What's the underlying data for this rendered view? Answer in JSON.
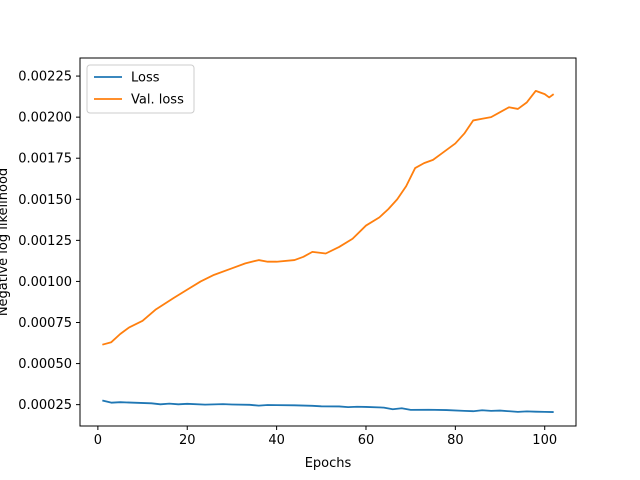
{
  "chart_data": {
    "type": "line",
    "xlabel": "Epochs",
    "ylabel": "Negative log likelihood",
    "xlim": [
      -4,
      107
    ],
    "ylim": [
      0.00012,
      0.00236
    ],
    "xticks": [
      0,
      20,
      40,
      60,
      80,
      100
    ],
    "yticks": [
      0.00025,
      0.0005,
      0.00075,
      0.001,
      0.00125,
      0.0015,
      0.00175,
      0.002,
      0.00225
    ],
    "ytick_labels": [
      "0.00025",
      "0.00050",
      "0.00075",
      "0.00100",
      "0.00125",
      "0.00150",
      "0.00175",
      "0.00200",
      "0.00225"
    ],
    "xtick_labels": [
      "0",
      "20",
      "40",
      "60",
      "80",
      "100"
    ],
    "grid": false,
    "legend": "top-left",
    "series": [
      {
        "name": "Loss",
        "color": "#1f77b4",
        "points": [
          [
            1,
            0.000275
          ],
          [
            3,
            0.000262
          ],
          [
            5,
            0.000265
          ],
          [
            8,
            0.000262
          ],
          [
            12,
            0.000258
          ],
          [
            14,
            0.000252
          ],
          [
            16,
            0.000256
          ],
          [
            18,
            0.000252
          ],
          [
            20,
            0.000255
          ],
          [
            24,
            0.00025
          ],
          [
            28,
            0.000253
          ],
          [
            30,
            0.000251
          ],
          [
            34,
            0.000249
          ],
          [
            36,
            0.000244
          ],
          [
            38,
            0.000248
          ],
          [
            40,
            0.000247
          ],
          [
            44,
            0.000246
          ],
          [
            48,
            0.000243
          ],
          [
            50,
            0.00024
          ],
          [
            54,
            0.000239
          ],
          [
            56,
            0.000235
          ],
          [
            58,
            0.000237
          ],
          [
            60,
            0.000236
          ],
          [
            64,
            0.000232
          ],
          [
            66,
            0.000222
          ],
          [
            68,
            0.000228
          ],
          [
            70,
            0.000218
          ],
          [
            74,
            0.000219
          ],
          [
            78,
            0.000217
          ],
          [
            82,
            0.000212
          ],
          [
            84,
            0.00021
          ],
          [
            86,
            0.000216
          ],
          [
            88,
            0.000212
          ],
          [
            90,
            0.000214
          ],
          [
            94,
            0.000206
          ],
          [
            96,
            0.000209
          ],
          [
            98,
            0.000207
          ],
          [
            100,
            0.000206
          ],
          [
            102,
            0.000205
          ]
        ]
      },
      {
        "name": "Val. loss",
        "color": "#ff7f0e",
        "points": [
          [
            1,
            0.000615
          ],
          [
            3,
            0.00063
          ],
          [
            5,
            0.00068
          ],
          [
            7,
            0.00072
          ],
          [
            10,
            0.00076
          ],
          [
            13,
            0.00083
          ],
          [
            17,
            0.0009
          ],
          [
            20,
            0.00095
          ],
          [
            23,
            0.001
          ],
          [
            26,
            0.00104
          ],
          [
            30,
            0.00108
          ],
          [
            33,
            0.00111
          ],
          [
            36,
            0.00113
          ],
          [
            38,
            0.00112
          ],
          [
            40,
            0.00112
          ],
          [
            44,
            0.00113
          ],
          [
            46,
            0.00115
          ],
          [
            48,
            0.00118
          ],
          [
            51,
            0.00117
          ],
          [
            54,
            0.00121
          ],
          [
            57,
            0.00126
          ],
          [
            60,
            0.00134
          ],
          [
            63,
            0.00139
          ],
          [
            65,
            0.00144
          ],
          [
            67,
            0.0015
          ],
          [
            69,
            0.00158
          ],
          [
            71,
            0.00169
          ],
          [
            73,
            0.00172
          ],
          [
            75,
            0.00174
          ],
          [
            77,
            0.00178
          ],
          [
            80,
            0.00184
          ],
          [
            82,
            0.0019
          ],
          [
            84,
            0.00198
          ],
          [
            86,
            0.00199
          ],
          [
            88,
            0.002
          ],
          [
            90,
            0.00203
          ],
          [
            92,
            0.00206
          ],
          [
            94,
            0.00205
          ],
          [
            96,
            0.00209
          ],
          [
            98,
            0.00216
          ],
          [
            100,
            0.00214
          ],
          [
            101,
            0.00212
          ],
          [
            102,
            0.00214
          ]
        ]
      }
    ]
  }
}
